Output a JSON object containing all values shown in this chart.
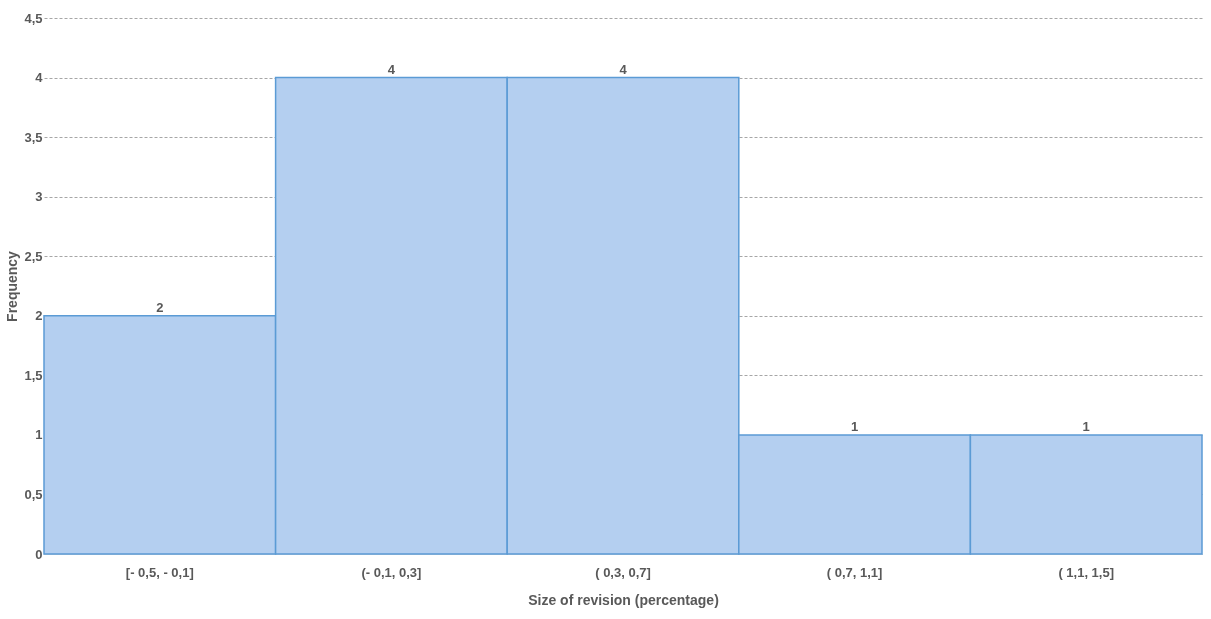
{
  "chart_data": {
    "type": "bar",
    "xlabel": "Size of revision (percentage)",
    "ylabel": "Frequency",
    "categories": [
      "[- 0,5, - 0,1]",
      "(- 0,1,  0,3]",
      "( 0,3,  0,7]",
      "( 0,7,  1,1]",
      "( 1,1,  1,5]"
    ],
    "values": [
      2,
      4,
      4,
      1,
      1
    ],
    "color": "#b4cff0",
    "ylim": [
      0,
      4.5
    ],
    "yticks": [
      0,
      {
        "value": 0.5,
        "label": "0,5"
      },
      1,
      {
        "value": 1.5,
        "label": "1,5"
      },
      2,
      {
        "value": 2.5,
        "label": "2,5"
      },
      3,
      {
        "value": 3.5,
        "label": "3,5"
      },
      4,
      {
        "value": 4.5,
        "label": "4,5"
      }
    ],
    "grid": "y",
    "data_labels": true
  }
}
